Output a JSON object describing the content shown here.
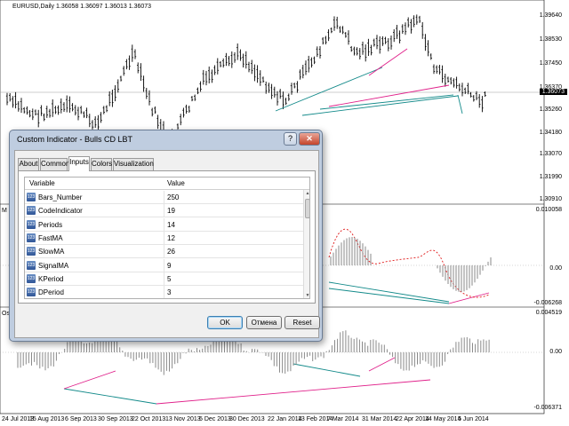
{
  "chart": {
    "title": "EURUSD,Daily  1.36058 1.36097 1.36013 1.36073",
    "current_price": "1.36073",
    "price_levels": [
      "1.39640",
      "1.38530",
      "1.37450",
      "1.36370",
      "1.35260",
      "1.34180",
      "1.33070",
      "1.31990",
      "1.30910"
    ],
    "ind1_levels": [
      "0.010058",
      "0.00",
      "-0.006268"
    ],
    "ind2_levels": [
      "0.004519",
      "0.00",
      "-0.006371"
    ],
    "ind1_label": "M",
    "ind2_label": "Os",
    "dates": [
      "24 Jul 2013",
      "15 Aug 2013",
      "6 Sep 2013",
      "30 Sep 2013",
      "22 Oct 2013",
      "13 Nov 2013",
      "5 Dec 2013",
      "30 Dec 2013",
      "22 Jan 2014",
      "13 Feb 2014",
      "7 Mar 2014",
      "31 Mar 2014",
      "22 Apr 2014",
      "14 May 2014",
      "5 Jun 2014"
    ],
    "colors": {
      "teal": "#138a8a",
      "pink": "#e0208a",
      "red_dash": "#e01818",
      "bars": "#000000"
    }
  },
  "dialog": {
    "title": "Custom Indicator - Bulls CD LBT",
    "help_label": "?",
    "close_label": "✕",
    "tabs": [
      {
        "label": "About",
        "active": false
      },
      {
        "label": "Common",
        "active": false
      },
      {
        "label": "Inputs",
        "active": true
      },
      {
        "label": "Colors",
        "active": false
      },
      {
        "label": "Visualization",
        "active": false
      }
    ],
    "grid": {
      "col_variable": "Variable",
      "col_value": "Value",
      "rows": [
        {
          "name": "Bars_Number",
          "value": "250"
        },
        {
          "name": "CodeIndicator",
          "value": "19"
        },
        {
          "name": "Periods",
          "value": "14"
        },
        {
          "name": "FastMA",
          "value": "12"
        },
        {
          "name": "SlowMA",
          "value": "26"
        },
        {
          "name": "SignalMA",
          "value": "9"
        },
        {
          "name": "KPeriod",
          "value": "5"
        },
        {
          "name": "DPeriod",
          "value": "3"
        }
      ],
      "row_icon": "123"
    },
    "ok_label": "OK",
    "cancel_label": "Отмена",
    "reset_label": "Reset",
    "scroll_up_icon": "▲",
    "scroll_down_icon": "▼"
  }
}
